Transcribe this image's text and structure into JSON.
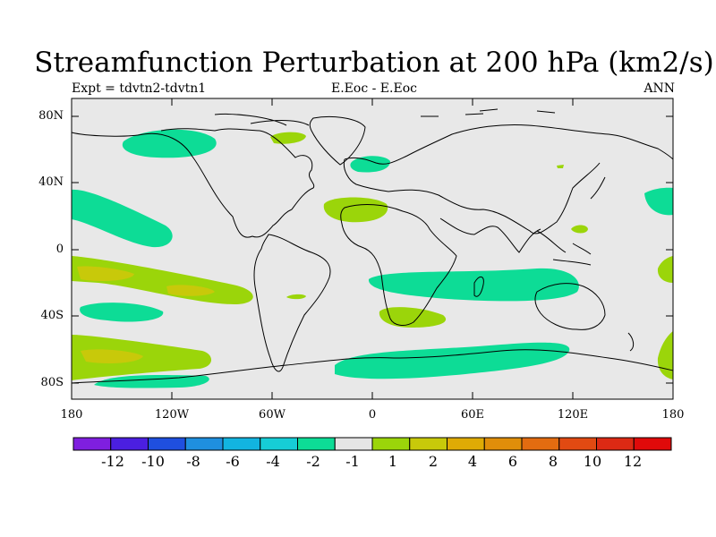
{
  "title": "Streamfunction Perturbation at 200 hPa (km2/s)",
  "subtitle_left": "Expt = tdvtn2-tdvtn1",
  "subtitle_center": "E.Eoc - E.Eoc",
  "subtitle_right": "ANN",
  "lat_labels": [
    "80N",
    "40N",
    "0",
    "40S",
    "80S"
  ],
  "lon_labels": [
    "180",
    "120W",
    "60W",
    "0",
    "60E",
    "120E",
    "180"
  ],
  "colorbar": {
    "colors": [
      "#7f1fdf",
      "#4b1fe0",
      "#1f4fdf",
      "#1f8fdf",
      "#12b4e0",
      "#16cdd6",
      "#0ddc96",
      "#e5e5e5",
      "#9bd50a",
      "#c8c90a",
      "#dfab05",
      "#e08e0a",
      "#e36c10",
      "#e14a12",
      "#dc2a14",
      "#e00a0a"
    ],
    "labels": [
      "-12",
      "-10",
      "-8",
      "-6",
      "-4",
      "-2",
      "-1",
      "1",
      "2",
      "4",
      "6",
      "8",
      "10",
      "12"
    ]
  },
  "field_colors": {
    "background": "#e8e8e8",
    "neg_fill": "#0ddc96",
    "pos1_fill": "#9bd50a",
    "pos2_fill": "#c8c90a",
    "coast": "#000000"
  }
}
